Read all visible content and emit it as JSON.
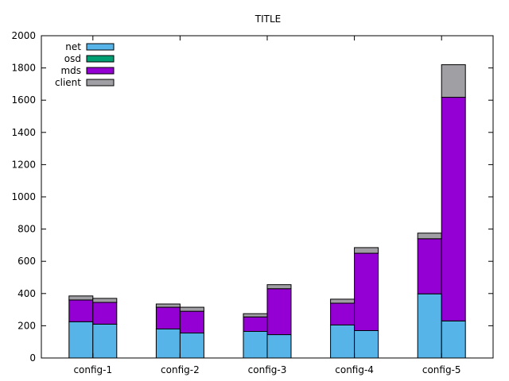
{
  "chart_data": {
    "type": "bar",
    "title": "TITLE",
    "xlabel": "",
    "ylabel": "",
    "ylim": [
      0,
      2000
    ],
    "yticks": [
      0,
      200,
      400,
      600,
      800,
      1000,
      1200,
      1400,
      1600,
      1800,
      2000
    ],
    "categories": [
      "config-1",
      "config-2",
      "config-3",
      "config-4",
      "config-5"
    ],
    "bars_per_category": 2,
    "grid": false,
    "legend_position": "top-left",
    "stacked": true,
    "series": [
      {
        "name": "net",
        "color": "#56b4e9",
        "values": [
          [
            225,
            210
          ],
          [
            180,
            155
          ],
          [
            165,
            145
          ],
          [
            205,
            170
          ],
          [
            398,
            230
          ]
        ]
      },
      {
        "name": "osd",
        "color": "#009e73",
        "values": [
          [
            0,
            0
          ],
          [
            0,
            0
          ],
          [
            0,
            0
          ],
          [
            0,
            0
          ],
          [
            0,
            0
          ]
        ]
      },
      {
        "name": "mds",
        "color": "#9400d3",
        "values": [
          [
            135,
            135
          ],
          [
            135,
            135
          ],
          [
            90,
            285
          ],
          [
            135,
            480
          ],
          [
            342,
            1388
          ]
        ]
      },
      {
        "name": "client",
        "color": "#a0a0a4",
        "values": [
          [
            25,
            25
          ],
          [
            20,
            25
          ],
          [
            20,
            25
          ],
          [
            25,
            35
          ],
          [
            35,
            202
          ]
        ]
      }
    ]
  }
}
